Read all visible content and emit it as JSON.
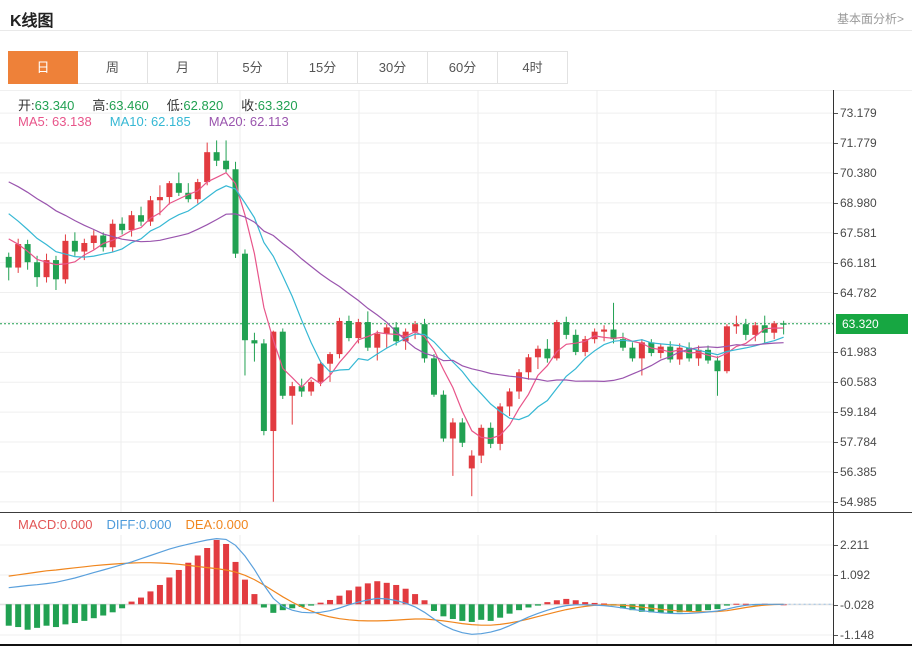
{
  "header": {
    "title": "K线图",
    "link": "基本面分析>"
  },
  "tabs": {
    "active_index": 0,
    "items": [
      {
        "label": "日"
      },
      {
        "label": "周"
      },
      {
        "label": "月"
      },
      {
        "label": "5分"
      },
      {
        "label": "15分"
      },
      {
        "label": "30分"
      },
      {
        "label": "60分"
      },
      {
        "label": "4时"
      }
    ]
  },
  "ohlc": {
    "open_label": "开:",
    "open": "63.340",
    "high_label": "高:",
    "high": "63.460",
    "low_label": "低:",
    "low": "62.820",
    "close_label": "收:",
    "close": "63.320"
  },
  "ma_legend": {
    "ma5_label": "MA5:",
    "ma5": "63.138",
    "ma10_label": "MA10:",
    "ma10": "62.185",
    "ma20_label": "MA20:",
    "ma20": "62.113"
  },
  "macd_legend": {
    "macd_label": "MACD:",
    "macd": "0.000",
    "diff_label": "DIFF:",
    "diff": "0.000",
    "dea_label": "DEA:",
    "dea": "0.000"
  },
  "colors": {
    "up": "#e23b40",
    "down": "#21a152",
    "badge_green": "#17a742",
    "price_line": "#21a152",
    "ma5": "#e8558a",
    "ma10": "#36b8d4",
    "ma20": "#9a55ae",
    "diff": "#5aa0dc",
    "dea": "#f0861e",
    "active_tab": "#ee8139",
    "grid": "#efefef",
    "vgrid": "#ececec",
    "zero_line": "#dddddd",
    "dashed_tail": "#9fc6e8"
  },
  "chart_data": [
    {
      "type": "candlestick",
      "title": "K线图 (daily K-line with MA5/MA10/MA20)",
      "legend": [
        "MA5",
        "MA10",
        "MA20"
      ],
      "ma_periods": [
        5,
        10,
        20
      ],
      "y_range": [
        54.51,
        74.26
      ],
      "y_ticks": [
        73.179,
        71.779,
        70.38,
        68.98,
        67.581,
        66.181,
        64.782,
        61.983,
        60.583,
        59.184,
        57.784,
        56.385,
        54.985
      ],
      "gridline_values": [
        73.179,
        71.779,
        70.38,
        68.98,
        67.581,
        66.181,
        64.782,
        63.383,
        61.983,
        60.583,
        59.184,
        57.784,
        56.385,
        54.985
      ],
      "current_price": 63.32,
      "price_badge": "63.320",
      "candles_format": [
        "open",
        "high",
        "low",
        "close"
      ],
      "candles": [
        [
          66.45,
          66.65,
          65.35,
          65.95
        ],
        [
          65.95,
          67.3,
          65.7,
          67.05
        ],
        [
          67.05,
          67.25,
          65.85,
          66.2
        ],
        [
          66.2,
          66.5,
          65.05,
          65.5
        ],
        [
          65.5,
          66.6,
          65.25,
          66.3
        ],
        [
          66.3,
          66.5,
          64.9,
          65.4
        ],
        [
          65.4,
          67.5,
          65.2,
          67.2
        ],
        [
          67.2,
          67.6,
          66.5,
          66.7
        ],
        [
          66.7,
          67.3,
          66.3,
          67.1
        ],
        [
          67.1,
          67.7,
          66.8,
          67.45
        ],
        [
          67.45,
          67.6,
          66.7,
          66.9
        ],
        [
          66.9,
          68.2,
          66.7,
          68.0
        ],
        [
          68.0,
          68.3,
          67.5,
          67.7
        ],
        [
          67.7,
          68.6,
          67.4,
          68.4
        ],
        [
          68.4,
          68.8,
          67.9,
          68.1
        ],
        [
          68.1,
          69.3,
          67.9,
          69.1
        ],
        [
          69.1,
          69.8,
          68.4,
          69.25
        ],
        [
          69.25,
          70.0,
          68.9,
          69.9
        ],
        [
          69.9,
          70.4,
          69.3,
          69.45
        ],
        [
          69.45,
          69.9,
          69.0,
          69.15
        ],
        [
          69.15,
          70.1,
          68.95,
          69.95
        ],
        [
          69.95,
          71.8,
          69.8,
          71.35
        ],
        [
          71.35,
          71.9,
          70.7,
          70.95
        ],
        [
          70.95,
          71.9,
          70.4,
          70.55
        ],
        [
          70.55,
          70.9,
          66.4,
          66.6
        ],
        [
          66.6,
          66.8,
          60.9,
          62.55
        ],
        [
          62.55,
          62.9,
          61.55,
          62.4
        ],
        [
          62.4,
          62.6,
          58.1,
          58.3
        ],
        [
          58.3,
          63.0,
          54.99,
          62.95
        ],
        [
          62.95,
          63.1,
          59.8,
          59.95
        ],
        [
          59.95,
          60.6,
          58.6,
          60.4
        ],
        [
          60.4,
          60.75,
          59.9,
          60.15
        ],
        [
          60.15,
          60.7,
          59.95,
          60.6
        ],
        [
          60.6,
          61.6,
          60.4,
          61.45
        ],
        [
          61.45,
          62.0,
          60.6,
          61.9
        ],
        [
          61.9,
          63.6,
          61.7,
          63.45
        ],
        [
          63.45,
          63.7,
          62.5,
          62.65
        ],
        [
          62.65,
          63.55,
          62.4,
          63.4
        ],
        [
          63.4,
          63.9,
          62.05,
          62.2
        ],
        [
          62.2,
          63.0,
          61.6,
          62.85
        ],
        [
          62.85,
          63.3,
          62.2,
          63.15
        ],
        [
          63.15,
          63.4,
          62.3,
          62.5
        ],
        [
          62.5,
          63.1,
          62.1,
          62.95
        ],
        [
          62.95,
          63.45,
          62.6,
          63.3
        ],
        [
          63.3,
          63.55,
          61.5,
          61.7
        ],
        [
          61.7,
          61.9,
          59.9,
          60.0
        ],
        [
          60.0,
          60.2,
          57.8,
          57.95
        ],
        [
          57.95,
          58.9,
          56.2,
          58.7
        ],
        [
          58.7,
          58.9,
          57.55,
          57.75
        ],
        [
          56.55,
          57.4,
          55.25,
          57.15
        ],
        [
          57.15,
          58.6,
          56.8,
          58.45
        ],
        [
          58.45,
          58.7,
          57.5,
          57.7
        ],
        [
          57.7,
          59.6,
          57.4,
          59.45
        ],
        [
          59.45,
          60.3,
          59.0,
          60.15
        ],
        [
          60.15,
          61.2,
          59.8,
          61.05
        ],
        [
          61.05,
          61.9,
          60.7,
          61.75
        ],
        [
          61.75,
          62.3,
          61.2,
          62.15
        ],
        [
          62.15,
          62.6,
          61.5,
          61.7
        ],
        [
          61.7,
          63.5,
          61.6,
          63.4
        ],
        [
          63.4,
          63.65,
          62.6,
          62.8
        ],
        [
          62.8,
          63.05,
          61.85,
          62.0
        ],
        [
          62.0,
          62.75,
          61.8,
          62.6
        ],
        [
          62.6,
          63.1,
          62.4,
          62.95
        ],
        [
          62.95,
          63.25,
          62.5,
          63.05
        ],
        [
          63.05,
          64.3,
          62.4,
          62.6
        ],
        [
          62.6,
          62.9,
          62.05,
          62.2
        ],
        [
          62.2,
          62.45,
          61.55,
          61.7
        ],
        [
          61.7,
          62.6,
          60.9,
          62.45
        ],
        [
          62.45,
          62.6,
          61.8,
          61.95
        ],
        [
          61.95,
          62.4,
          61.7,
          62.25
        ],
        [
          62.25,
          62.5,
          61.5,
          61.65
        ],
        [
          61.65,
          62.4,
          61.4,
          62.2
        ],
        [
          62.2,
          62.45,
          61.55,
          61.7
        ],
        [
          61.7,
          62.3,
          61.35,
          62.1
        ],
        [
          62.1,
          62.3,
          61.45,
          61.6
        ],
        [
          61.6,
          61.8,
          59.95,
          61.1
        ],
        [
          61.1,
          63.3,
          61.0,
          63.2
        ],
        [
          63.2,
          63.7,
          62.85,
          63.3
        ],
        [
          63.3,
          63.55,
          62.55,
          62.8
        ],
        [
          62.8,
          63.4,
          62.5,
          63.25
        ],
        [
          63.25,
          63.7,
          62.35,
          62.9
        ],
        [
          62.9,
          63.45,
          62.6,
          63.34
        ],
        [
          63.34,
          63.46,
          62.82,
          63.32
        ]
      ]
    },
    {
      "type": "bar",
      "title": "MACD (histogram with DIFF/DEA lines)",
      "legend": [
        "MACD",
        "DIFF",
        "DEA"
      ],
      "y_range": [
        -1.52,
        2.585
      ],
      "y_ticks": [
        2.211,
        1.092,
        -0.028,
        -1.148
      ],
      "hist": [
        -0.8,
        -0.85,
        -0.95,
        -0.88,
        -0.8,
        -0.85,
        -0.75,
        -0.7,
        -0.62,
        -0.52,
        -0.42,
        -0.3,
        -0.15,
        0.1,
        0.25,
        0.48,
        0.72,
        1.0,
        1.28,
        1.55,
        1.82,
        2.1,
        2.4,
        2.25,
        1.58,
        0.92,
        0.38,
        -0.12,
        -0.32,
        -0.22,
        -0.15,
        -0.1,
        -0.05,
        0.06,
        0.16,
        0.32,
        0.52,
        0.66,
        0.78,
        0.86,
        0.8,
        0.72,
        0.58,
        0.38,
        0.15,
        -0.25,
        -0.45,
        -0.55,
        -0.62,
        -0.66,
        -0.58,
        -0.62,
        -0.5,
        -0.35,
        -0.22,
        -0.12,
        -0.05,
        0.08,
        0.15,
        0.2,
        0.15,
        0.08,
        0.05,
        0.03,
        -0.05,
        -0.15,
        -0.22,
        -0.28,
        -0.3,
        -0.32,
        -0.33,
        -0.3,
        -0.28,
        -0.26,
        -0.22,
        -0.18,
        -0.05,
        0.02,
        0.02,
        -0.02,
        0.02,
        0.01,
        0.0
      ],
      "diff": [
        0.62,
        0.66,
        0.7,
        0.73,
        0.77,
        0.82,
        0.9,
        0.98,
        1.08,
        1.18,
        1.28,
        1.38,
        1.48,
        1.58,
        1.7,
        1.82,
        1.94,
        2.06,
        2.16,
        2.24,
        2.32,
        2.4,
        2.45,
        2.42,
        2.2,
        1.8,
        1.3,
        0.72,
        0.22,
        -0.08,
        -0.22,
        -0.3,
        -0.32,
        -0.3,
        -0.24,
        -0.14,
        -0.02,
        0.08,
        0.16,
        0.22,
        0.2,
        0.14,
        0.04,
        -0.1,
        -0.3,
        -0.55,
        -0.78,
        -0.95,
        -1.06,
        -1.12,
        -1.1,
        -1.04,
        -0.94,
        -0.8,
        -0.64,
        -0.48,
        -0.34,
        -0.22,
        -0.12,
        -0.05,
        -0.02,
        -0.02,
        -0.03,
        -0.05,
        -0.09,
        -0.14,
        -0.19,
        -0.24,
        -0.28,
        -0.32,
        -0.34,
        -0.35,
        -0.34,
        -0.32,
        -0.29,
        -0.25,
        -0.18,
        -0.1,
        -0.04,
        -0.01,
        0.0,
        0.0,
        0.0
      ],
      "dea": [
        1.05,
        1.1,
        1.15,
        1.2,
        1.25,
        1.28,
        1.32,
        1.36,
        1.4,
        1.44,
        1.47,
        1.5,
        1.52,
        1.54,
        1.55,
        1.55,
        1.54,
        1.52,
        1.49,
        1.45,
        1.41,
        1.37,
        1.33,
        1.28,
        1.2,
        1.08,
        0.92,
        0.72,
        0.5,
        0.28,
        0.08,
        -0.1,
        -0.25,
        -0.38,
        -0.47,
        -0.54,
        -0.58,
        -0.61,
        -0.62,
        -0.62,
        -0.61,
        -0.59,
        -0.57,
        -0.55,
        -0.55,
        -0.58,
        -0.62,
        -0.67,
        -0.72,
        -0.76,
        -0.78,
        -0.78,
        -0.75,
        -0.7,
        -0.63,
        -0.55,
        -0.46,
        -0.37,
        -0.28,
        -0.2,
        -0.13,
        -0.08,
        -0.04,
        -0.02,
        -0.02,
        -0.04,
        -0.07,
        -0.11,
        -0.15,
        -0.19,
        -0.22,
        -0.25,
        -0.27,
        -0.28,
        -0.28,
        -0.27,
        -0.24,
        -0.18,
        -0.12,
        -0.07,
        -0.03,
        -0.01,
        0.0
      ]
    }
  ]
}
